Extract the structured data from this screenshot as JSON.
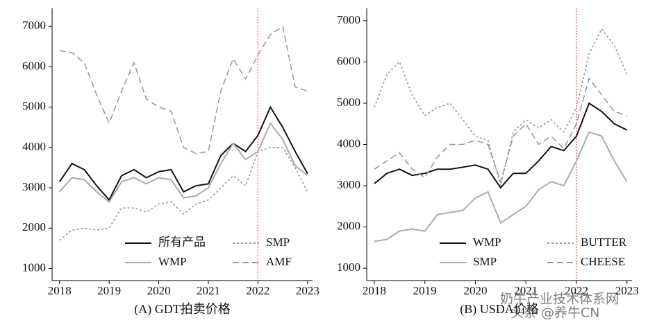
{
  "chart_data": [
    {
      "type": "line",
      "caption": "(A) GDT拍卖价格",
      "x": [
        2018,
        2018.25,
        2018.5,
        2018.75,
        2019,
        2019.25,
        2019.5,
        2019.75,
        2020,
        2020.25,
        2020.5,
        2020.75,
        2021,
        2021.25,
        2021.5,
        2021.75,
        2022,
        2022.25,
        2022.5,
        2022.75,
        2023
      ],
      "xlim": [
        2017.85,
        2023.1
      ],
      "xticks": [
        2018,
        2019,
        2020,
        2021,
        2022,
        2023
      ],
      "ylim": [
        700,
        7450
      ],
      "yticks": [
        1000,
        2000,
        3000,
        4000,
        5000,
        6000,
        7000
      ],
      "vline": 2022,
      "series": [
        {
          "name": "所有产品",
          "color": "#111111",
          "dash": "solid",
          "values": [
            3150,
            3600,
            3450,
            3050,
            2700,
            3300,
            3450,
            3250,
            3400,
            3450,
            2900,
            3050,
            3100,
            3800,
            4100,
            3900,
            4300,
            5000,
            4500,
            3900,
            3350
          ]
        },
        {
          "name": "SMP",
          "color": "#9a9a9a",
          "dash": "dotted",
          "values": [
            1700,
            1950,
            2000,
            1950,
            2000,
            2500,
            2500,
            2400,
            2600,
            2650,
            2350,
            2600,
            2700,
            3000,
            3300,
            3050,
            3900,
            4000,
            4000,
            3500,
            2900
          ]
        },
        {
          "name": "WMP",
          "color": "#aaaaaa",
          "dash": "solid",
          "values": [
            2900,
            3250,
            3200,
            2900,
            2650,
            3150,
            3250,
            3100,
            3250,
            3200,
            2750,
            2800,
            3000,
            3600,
            4100,
            3700,
            3900,
            4600,
            4200,
            3550,
            3300
          ]
        },
        {
          "name": "AMF",
          "color": "#9a9a9a",
          "dash": "dashed",
          "values": [
            6400,
            6350,
            6100,
            5300,
            4600,
            5400,
            6100,
            5200,
            5000,
            4900,
            4000,
            3850,
            3900,
            5400,
            6200,
            5700,
            6300,
            6800,
            7000,
            5500,
            5400
          ]
        }
      ]
    },
    {
      "type": "line",
      "caption": "(B) USDA价格",
      "x": [
        2018,
        2018.25,
        2018.5,
        2018.75,
        2019,
        2019.25,
        2019.5,
        2019.75,
        2020,
        2020.25,
        2020.5,
        2020.75,
        2021,
        2021.25,
        2021.5,
        2021.75,
        2022,
        2022.25,
        2022.5,
        2022.75,
        2023
      ],
      "xlim": [
        2017.85,
        2023.1
      ],
      "xticks": [
        2018,
        2019,
        2020,
        2021,
        2022,
        2023
      ],
      "ylim": [
        700,
        7300
      ],
      "yticks": [
        1000,
        2000,
        3000,
        4000,
        5000,
        6000,
        7000
      ],
      "vline": 2022,
      "series": [
        {
          "name": "WMP",
          "color": "#111111",
          "dash": "solid",
          "values": [
            3050,
            3300,
            3400,
            3250,
            3300,
            3400,
            3400,
            3450,
            3500,
            3400,
            2950,
            3300,
            3300,
            3600,
            3950,
            3850,
            4200,
            5000,
            4800,
            4500,
            4350
          ]
        },
        {
          "name": "BUTTER",
          "color": "#9a9a9a",
          "dash": "dotted",
          "values": [
            4900,
            5700,
            6000,
            5200,
            4700,
            4900,
            5000,
            4600,
            4200,
            4100,
            3000,
            4300,
            4600,
            4400,
            4600,
            4300,
            4900,
            6200,
            6800,
            6400,
            5700
          ]
        },
        {
          "name": "SMP",
          "color": "#aaaaaa",
          "dash": "solid",
          "values": [
            1650,
            1700,
            1900,
            1950,
            1900,
            2300,
            2350,
            2400,
            2700,
            2850,
            2100,
            2300,
            2500,
            2900,
            3100,
            3000,
            3600,
            4300,
            4200,
            3600,
            3100
          ]
        },
        {
          "name": "CHEESE",
          "color": "#9a9a9a",
          "dash": "dashed",
          "values": [
            3400,
            3600,
            3800,
            3400,
            3200,
            3700,
            4000,
            4000,
            4100,
            4000,
            3100,
            4200,
            4500,
            4000,
            4200,
            3900,
            4500,
            5600,
            5200,
            4800,
            4700
          ]
        }
      ]
    }
  ],
  "watermark": [
    "奶牛产业技术体系网",
    "头条 @养牛CN"
  ]
}
